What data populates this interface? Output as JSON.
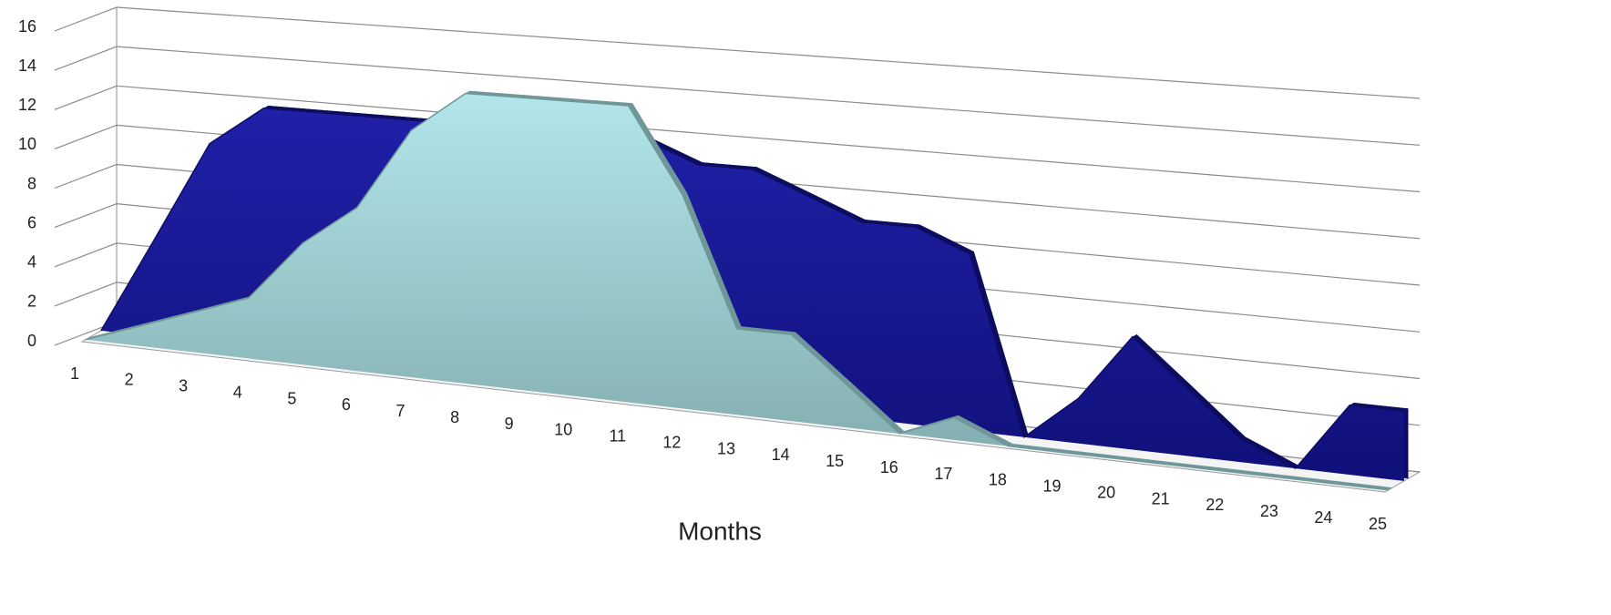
{
  "chart_data": {
    "type": "area3d",
    "x_label": "Months",
    "categories": [
      "1",
      "2",
      "3",
      "4",
      "5",
      "6",
      "7",
      "8",
      "9",
      "10",
      "11",
      "12",
      "13",
      "14",
      "15",
      "16",
      "17",
      "18",
      "19",
      "20",
      "21",
      "22",
      "23",
      "24",
      "25"
    ],
    "series": [
      {
        "color": "#1c1c9c",
        "values": [
          0,
          5,
          10,
          12,
          12,
          12,
          12,
          12,
          12,
          12,
          12,
          11,
          11,
          10,
          9,
          9,
          8,
          0,
          2,
          5,
          3,
          1,
          0,
          3,
          3
        ]
      },
      {
        "color": "#a9dfe2",
        "values": [
          0,
          1,
          2,
          3,
          6,
          8,
          12,
          14,
          14,
          14,
          14,
          10,
          4,
          4,
          2,
          0,
          1,
          0,
          0,
          0,
          0,
          0,
          0,
          0,
          0
        ]
      }
    ],
    "ylim": [
      0,
      16
    ],
    "yticks": [
      0,
      2,
      4,
      6,
      8,
      10,
      12,
      14,
      16
    ],
    "grid": true
  }
}
